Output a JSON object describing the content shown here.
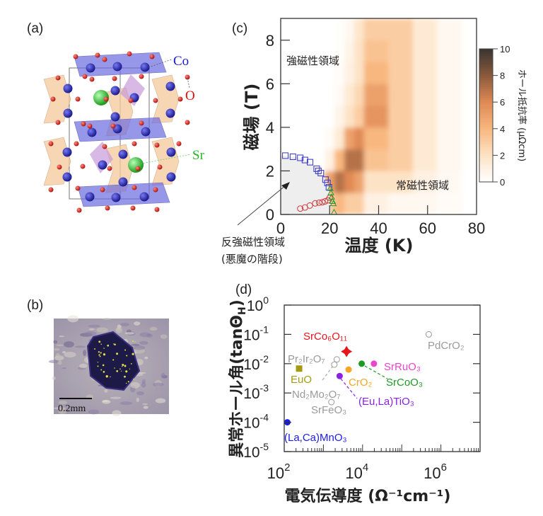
{
  "panel_labels": {
    "a": "(a)",
    "b": "(b)",
    "c": "(c)",
    "d": "(d)"
  },
  "structure": {
    "labels": {
      "co": "Co",
      "o": "O",
      "sr": "Sr"
    },
    "colors": {
      "co": "#2323b0",
      "o": "#e02020",
      "sr": "#2ecc40",
      "octa_blue": "#6b6be0",
      "octa_orange": "#f3c89a",
      "octa_purple": "#c89ad8"
    }
  },
  "photo": {
    "scale_bar_label": "0.2mm"
  },
  "chart_data": [
    {
      "id": "c",
      "type": "heatmap",
      "xlabel": "温度 (K)",
      "ylabel": "磁場 (T)",
      "xlim": [
        0,
        80
      ],
      "ylim": [
        0,
        9
      ],
      "xticks": [
        "0",
        "20",
        "40",
        "60",
        "80"
      ],
      "xtick_values": [
        0,
        20,
        40,
        60,
        80
      ],
      "yticks": [
        "0",
        "2",
        "4",
        "6",
        "8"
      ],
      "ytick_values": [
        0,
        2,
        4,
        6,
        8
      ],
      "colorbar": {
        "label": "ホール抵抗率 (μΩcm)",
        "range": [
          0,
          10
        ],
        "ticks": [
          "0",
          "2",
          "4",
          "6",
          "8",
          "10"
        ],
        "tick_values": [
          0,
          2,
          4,
          6,
          8,
          10
        ],
        "colormap": [
          "#ffffff",
          "#fde3c6",
          "#f8b77f",
          "#e08a55",
          "#8a5a3c",
          "#3a3532"
        ]
      },
      "heat": {
        "t_edges": [
          18,
          22,
          26,
          30,
          34,
          44,
          54,
          64,
          74
        ],
        "b_edges": [
          0,
          1,
          2,
          3,
          4,
          5,
          6,
          7,
          8,
          9
        ],
        "values_by_t": [
          [
            3,
            5,
            1,
            0.3,
            0,
            0,
            0,
            0,
            0
          ],
          [
            4,
            7,
            4,
            1.5,
            0.8,
            0.4,
            0.2,
            0.1,
            0.1
          ],
          [
            3,
            6,
            7,
            5,
            2,
            1.5,
            1,
            0.8,
            0.5
          ],
          [
            3,
            5,
            7,
            6,
            3,
            2.5,
            2,
            2,
            1.8
          ],
          [
            1,
            2,
            3.5,
            4,
            5.5,
            5,
            4,
            3.5,
            3
          ],
          [
            0.5,
            2,
            3,
            3,
            3,
            3,
            3,
            3,
            3
          ],
          [
            0.5,
            1,
            1.5,
            1.5,
            1.5,
            1.5,
            1.5,
            1.5,
            1.5
          ],
          [
            0.3,
            0.4,
            0.5,
            0.5,
            0.5,
            0.5,
            0.5,
            0.5,
            0.5
          ]
        ]
      },
      "series": [
        {
          "name": "afm-boundary-squares",
          "marker": "square",
          "color": "#3434c8",
          "points": [
            [
              1.9,
              2.7
            ],
            [
              5.0,
              2.65
            ],
            [
              8.0,
              2.6
            ],
            [
              9.9,
              2.5
            ],
            [
              12,
              2.4
            ],
            [
              14.7,
              2.1
            ],
            [
              15.4,
              2.0
            ],
            [
              16.4,
              1.9
            ],
            [
              18.3,
              1.6
            ],
            [
              19.1,
              1.45
            ],
            [
              19.7,
              1.25
            ]
          ]
        },
        {
          "name": "circles",
          "marker": "circle",
          "color": "#d03a3a",
          "points": [
            [
              8,
              0.27
            ],
            [
              9.9,
              0.32
            ],
            [
              11.9,
              0.41
            ],
            [
              14.1,
              0.51
            ],
            [
              15.7,
              0.54
            ],
            [
              17,
              0.56
            ],
            [
              18.1,
              0.6
            ],
            [
              19.3,
              0.65
            ],
            [
              20,
              0.76
            ]
          ]
        },
        {
          "name": "triangles",
          "marker": "triangle",
          "color": "#2c9a2c",
          "points": [
            [
              20.2,
              1.2
            ],
            [
              20.5,
              1.0
            ],
            [
              20.8,
              0.8
            ],
            [
              21.2,
              0.6
            ],
            [
              21.5,
              0.5
            ],
            [
              21.8,
              0.1
            ]
          ]
        }
      ],
      "annotations": {
        "ferro": "強磁性領域",
        "para": "常磁性領域",
        "afm_line1": "反強磁性領域",
        "afm_line2": "(悪魔の階段)"
      }
    },
    {
      "id": "d",
      "type": "scatter",
      "xlabel": "電気伝導度 (Ω⁻¹cm⁻¹)",
      "ylabel": "異常ホール角(tanΘ",
      "ylabel_sub": "H",
      "ylabel_end": ")",
      "xscale": "log",
      "yscale": "log",
      "xlim": [
        100,
        10000000
      ],
      "ylim": [
        1e-05,
        1
      ],
      "xticks": [
        {
          "base": "10",
          "exp": "2",
          "value": 100
        },
        {
          "base": "10",
          "exp": "4",
          "value": 10000
        },
        {
          "base": "10",
          "exp": "6",
          "value": 1000000
        }
      ],
      "yticks": [
        {
          "base": "10",
          "exp": "0",
          "value": 1
        },
        {
          "base": "10",
          "exp": "-1",
          "value": 0.1
        },
        {
          "base": "10",
          "exp": "-2",
          "value": 0.01
        },
        {
          "base": "10",
          "exp": "-3",
          "value": 0.001
        },
        {
          "base": "10",
          "exp": "-4",
          "value": 0.0001
        },
        {
          "base": "10",
          "exp": "-5",
          "value": 1e-05
        }
      ],
      "points": [
        {
          "label": "SrCo₆O₁₁",
          "x": 3900,
          "y": 0.026,
          "marker": "star4",
          "filled": true,
          "color": "#e8141c"
        },
        {
          "label": "PdCrO₂",
          "x": 490000,
          "y": 0.1,
          "marker": "circle",
          "filled": false,
          "color": "#9a9a9a"
        },
        {
          "label": "Pr₂Ir₂O₇",
          "x": 2200,
          "y": 0.014,
          "marker": "circle",
          "filled": false,
          "color": "#9a9a9a"
        },
        {
          "label": "Nd₂Mo₂O₇",
          "x": 1900,
          "y": 0.0093,
          "marker": "circle",
          "filled": false,
          "color": "#9a9a9a"
        },
        {
          "label": "EuO",
          "x": 240,
          "y": 0.0068,
          "marker": "square",
          "filled": true,
          "color": "#a39b12"
        },
        {
          "label": "SrFeO₃",
          "x": 1600,
          "y": 0.00049,
          "marker": "circle",
          "filled": false,
          "color": "#9a9a9a"
        },
        {
          "label": "(Eu,La)TiO₃",
          "x": 2600,
          "y": 0.0038,
          "marker": "circle",
          "filled": true,
          "color": "#8a22e6"
        },
        {
          "label": "CrO₂",
          "x": 4400,
          "y": 0.0063,
          "marker": "circle",
          "filled": true,
          "color": "#f5a623"
        },
        {
          "label": "SrCoO₃",
          "x": 9500,
          "y": 0.01,
          "marker": "circle",
          "filled": true,
          "color": "#1f9a25"
        },
        {
          "label": "SrRuO₃",
          "x": 19500,
          "y": 0.01,
          "marker": "circle",
          "filled": true,
          "color": "#ee44cc"
        },
        {
          "label": "(La,Ca)MnO₃",
          "x": 120,
          "y": 0.0001,
          "marker": "circle",
          "filled": true,
          "color": "#1a1aee"
        }
      ]
    }
  ]
}
